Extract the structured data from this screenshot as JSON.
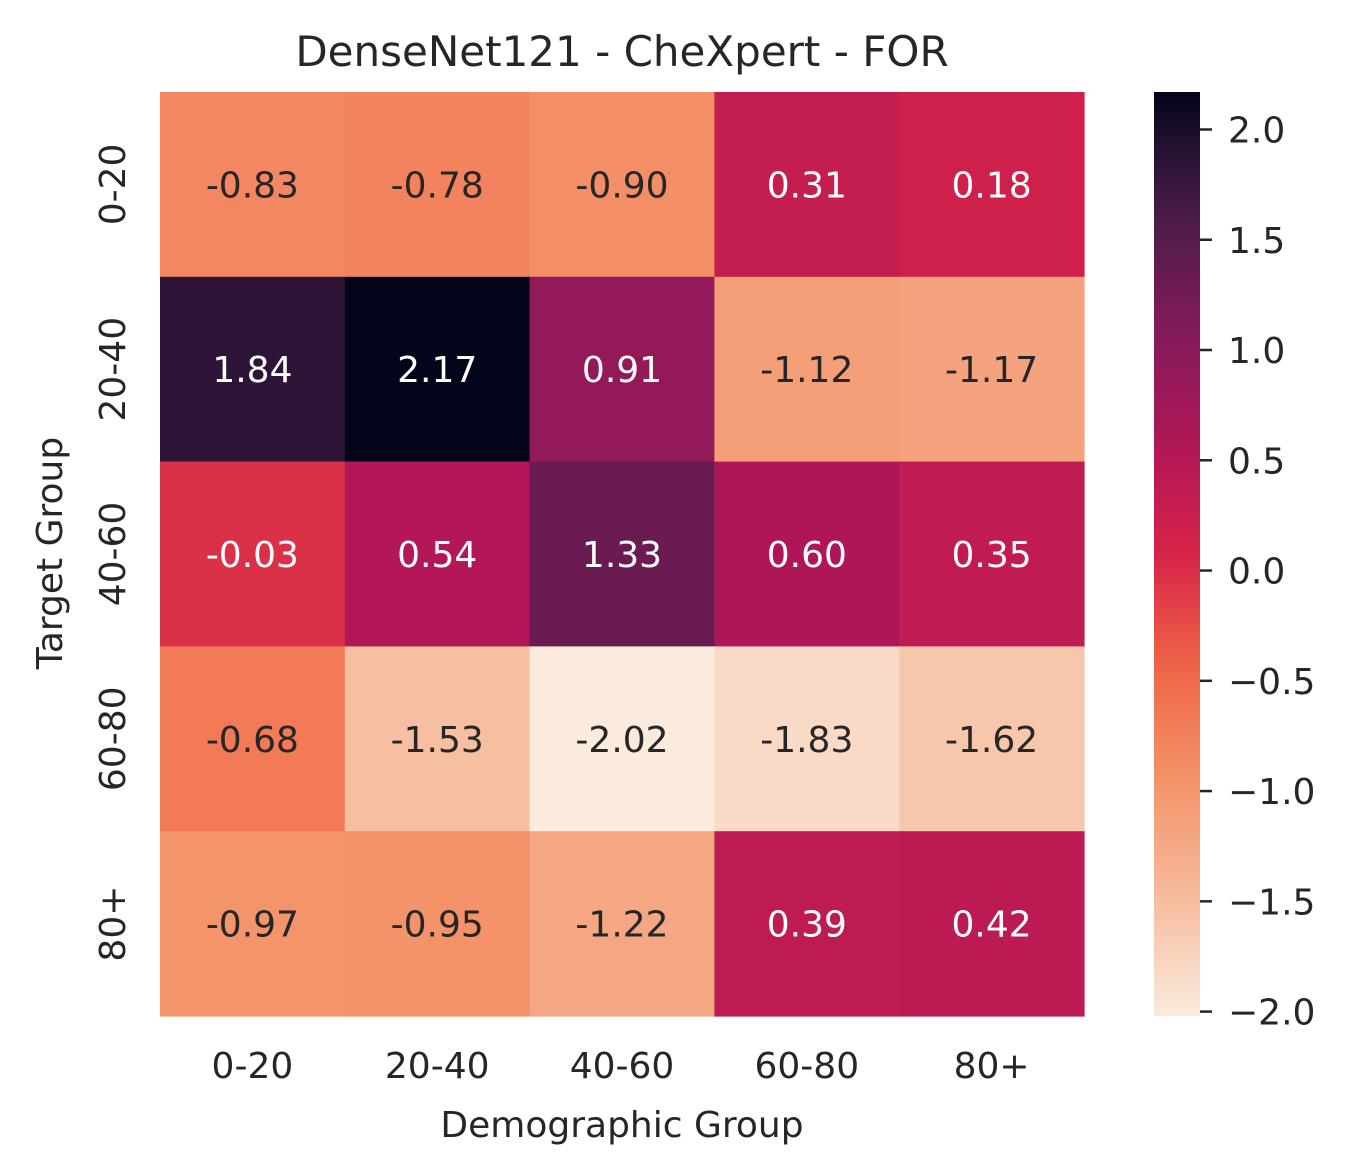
{
  "chart_data": {
    "type": "heatmap",
    "title": "DenseNet121 - CheXpert - FOR",
    "xlabel": "Demographic Group",
    "ylabel": "Target Group",
    "x_categories": [
      "0-20",
      "20-40",
      "40-60",
      "60-80",
      "80+"
    ],
    "y_categories": [
      "0-20",
      "20-40",
      "40-60",
      "60-80",
      "80+"
    ],
    "values": [
      [
        -0.83,
        -0.78,
        -0.9,
        0.31,
        0.18
      ],
      [
        1.84,
        2.17,
        0.91,
        -1.12,
        -1.17
      ],
      [
        -0.03,
        0.54,
        1.33,
        0.6,
        0.35
      ],
      [
        -0.68,
        -1.53,
        -2.02,
        -1.83,
        -1.62
      ],
      [
        -0.97,
        -0.95,
        -1.22,
        0.39,
        0.42
      ]
    ],
    "value_labels": [
      [
        "-0.83",
        "-0.78",
        "-0.90",
        "0.31",
        "0.18"
      ],
      [
        "1.84",
        "2.17",
        "0.91",
        "-1.12",
        "-1.17"
      ],
      [
        "-0.03",
        "0.54",
        "1.33",
        "0.60",
        "0.35"
      ],
      [
        "-0.68",
        "-1.53",
        "-2.02",
        "-1.83",
        "-1.62"
      ],
      [
        "-0.97",
        "-0.95",
        "-1.22",
        "0.39",
        "0.42"
      ]
    ],
    "colorbar": {
      "range": [
        -2.02,
        2.17
      ],
      "ticks": [
        2.0,
        1.5,
        1.0,
        0.5,
        0.0,
        -0.5,
        -1.0,
        -1.5,
        -2.0
      ],
      "tick_labels": [
        "2.0",
        "1.5",
        "1.0",
        "0.5",
        "0.0",
        "−0.5",
        "−1.0",
        "−1.5",
        "−2.0"
      ]
    },
    "colormap": "rocket_r",
    "grid": false
  }
}
